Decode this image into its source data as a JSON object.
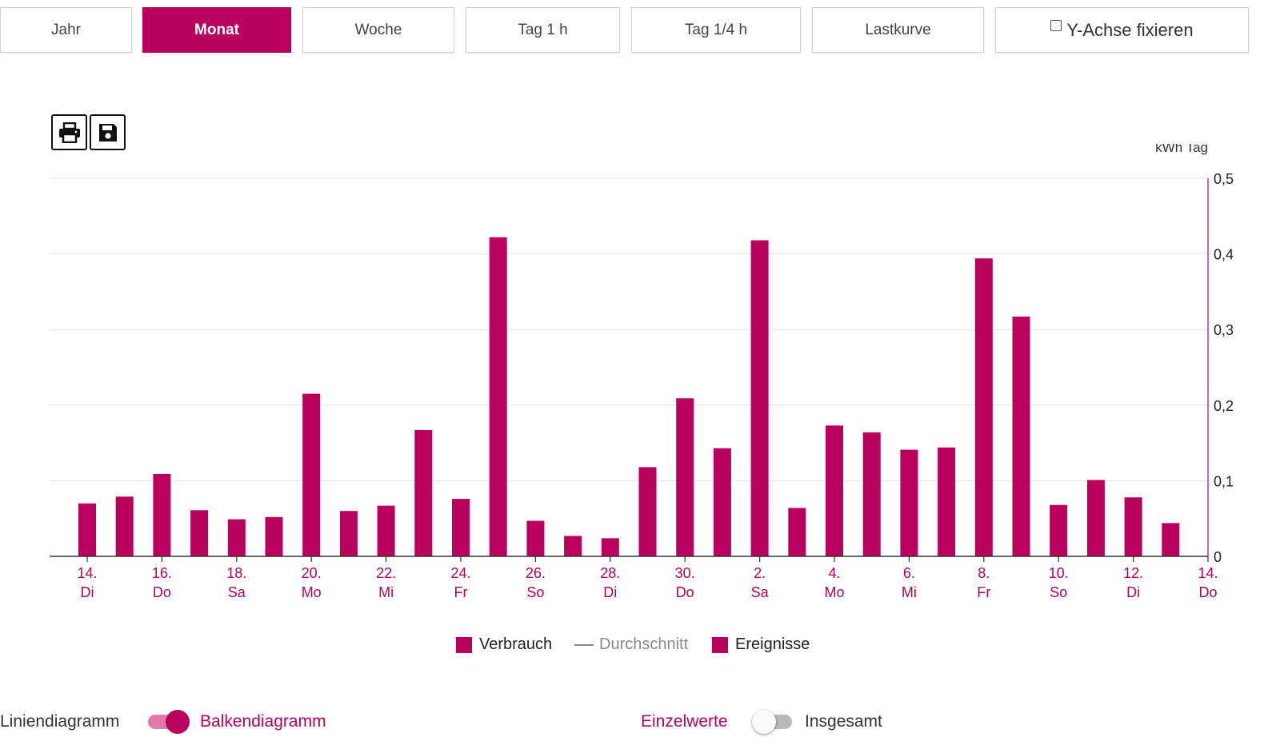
{
  "tabs": [
    {
      "label": "Jahr",
      "active": false
    },
    {
      "label": "Monat",
      "active": true
    },
    {
      "label": "Woche",
      "active": false
    },
    {
      "label": "Tag 1 h",
      "active": false
    },
    {
      "label": "Tag 1/4 h",
      "active": false
    },
    {
      "label": "Lastkurve",
      "active": false
    }
  ],
  "fix_axis": {
    "label": "Y-Achse fixieren",
    "checked": false
  },
  "toolbar": {
    "print_icon": "printer-icon",
    "save_icon": "floppy-disk-icon"
  },
  "colors": {
    "accent": "#b8005c",
    "grid": "#e2e2e2",
    "axis": "#333333",
    "muted": "#888888"
  },
  "chart_data": {
    "type": "bar",
    "unit_label": "kWh Tag",
    "ylim": [
      0,
      0.5
    ],
    "yticks": [
      {
        "value": 0,
        "label": "0"
      },
      {
        "value": 0.1,
        "label": "0,1"
      },
      {
        "value": 0.2,
        "label": "0,2"
      },
      {
        "value": 0.3,
        "label": "0,3"
      },
      {
        "value": 0.4,
        "label": "0,4"
      },
      {
        "value": 0.5,
        "label": "0,5"
      }
    ],
    "x_day_range": [
      14,
      45
    ],
    "bars": [
      {
        "day": 14,
        "value": 0.07
      },
      {
        "day": 15,
        "value": 0.079
      },
      {
        "day": 16,
        "value": 0.109
      },
      {
        "day": 17,
        "value": 0.061
      },
      {
        "day": 18,
        "value": 0.049
      },
      {
        "day": 19,
        "value": 0.052
      },
      {
        "day": 20,
        "value": 0.215
      },
      {
        "day": 21,
        "value": 0.06
      },
      {
        "day": 22,
        "value": 0.067
      },
      {
        "day": 23,
        "value": 0.167
      },
      {
        "day": 24,
        "value": 0.076
      },
      {
        "day": 25,
        "value": 0.422
      },
      {
        "day": 26,
        "value": 0.047
      },
      {
        "day": 27,
        "value": 0.027
      },
      {
        "day": 28,
        "value": 0.024
      },
      {
        "day": 29,
        "value": 0.118
      },
      {
        "day": 30,
        "value": 0.209
      },
      {
        "day": 31,
        "value": 0.143
      },
      {
        "day": 32,
        "value": 0.418
      },
      {
        "day": 33,
        "value": 0.064
      },
      {
        "day": 34,
        "value": 0.173
      },
      {
        "day": 35,
        "value": 0.164
      },
      {
        "day": 36,
        "value": 0.141
      },
      {
        "day": 37,
        "value": 0.144
      },
      {
        "day": 38,
        "value": 0.394
      },
      {
        "day": 39,
        "value": 0.317
      },
      {
        "day": 40,
        "value": 0.068
      },
      {
        "day": 41,
        "value": 0.101
      },
      {
        "day": 42,
        "value": 0.078
      },
      {
        "day": 43,
        "value": 0.044
      }
    ],
    "xticks": [
      {
        "day": 14,
        "date": "14.",
        "weekday": "Di"
      },
      {
        "day": 16,
        "date": "16.",
        "weekday": "Do"
      },
      {
        "day": 18,
        "date": "18.",
        "weekday": "Sa"
      },
      {
        "day": 20,
        "date": "20.",
        "weekday": "Mo"
      },
      {
        "day": 22,
        "date": "22.",
        "weekday": "Mi"
      },
      {
        "day": 24,
        "date": "24.",
        "weekday": "Fr"
      },
      {
        "day": 26,
        "date": "26.",
        "weekday": "So"
      },
      {
        "day": 28,
        "date": "28.",
        "weekday": "Di"
      },
      {
        "day": 30,
        "date": "30.",
        "weekday": "Do"
      },
      {
        "day": 32,
        "date": "2.",
        "weekday": "Sa"
      },
      {
        "day": 34,
        "date": "4.",
        "weekday": "Mo"
      },
      {
        "day": 36,
        "date": "6.",
        "weekday": "Mi"
      },
      {
        "day": 38,
        "date": "8.",
        "weekday": "Fr"
      },
      {
        "day": 40,
        "date": "10.",
        "weekday": "So"
      },
      {
        "day": 42,
        "date": "12.",
        "weekday": "Di"
      },
      {
        "day": 44,
        "date": "14.",
        "weekday": "Do"
      }
    ],
    "grid": true,
    "legend": [
      {
        "label": "Verbrauch",
        "kind": "box",
        "active": true
      },
      {
        "label": "Durchschnitt",
        "kind": "line",
        "active": false
      },
      {
        "label": "Ereignisse",
        "kind": "box",
        "active": true
      }
    ],
    "legend_position": "bottom-center"
  },
  "controls": {
    "chart_type": {
      "left_label": "Liniendiagramm",
      "right_label": "Balkendiagramm",
      "on": true
    },
    "value_mode": {
      "left_label": "Einzelwerte",
      "right_label": "Insgesamt",
      "on": false
    }
  }
}
